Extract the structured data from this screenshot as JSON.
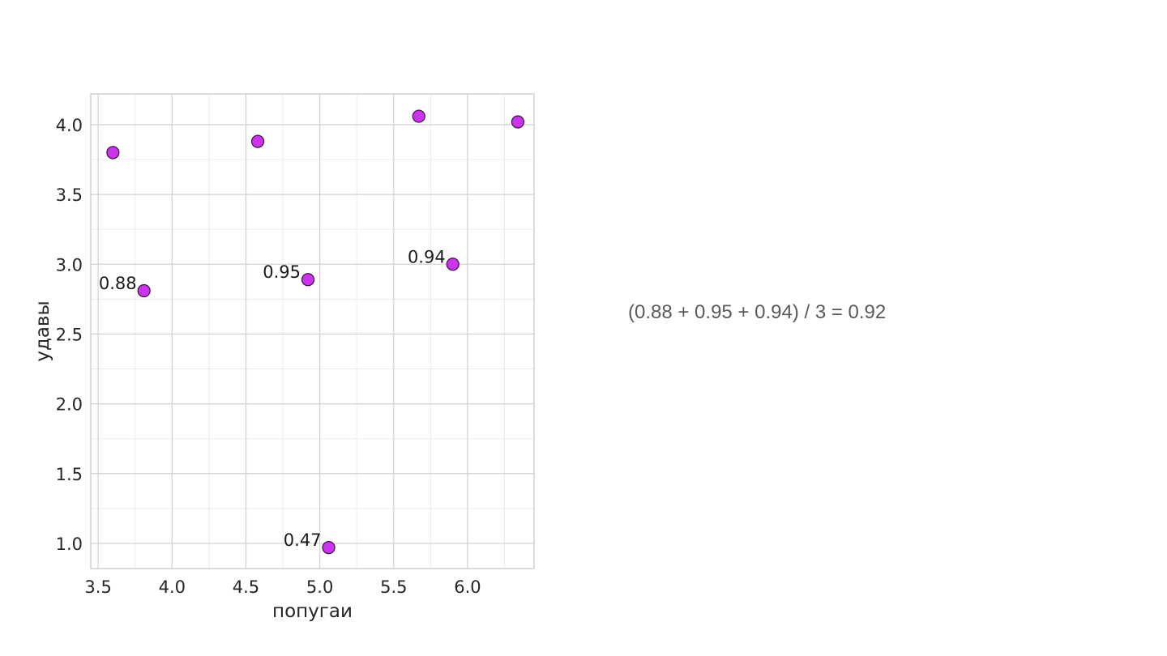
{
  "chart_data": {
    "type": "scatter",
    "xlabel": "попугаи",
    "ylabel": "удавы",
    "xlim": [
      3.45,
      6.45
    ],
    "ylim": [
      0.82,
      4.22
    ],
    "xticks": [
      3.5,
      4.0,
      4.5,
      5.0,
      5.5,
      6.0
    ],
    "yticks": [
      1.0,
      1.5,
      2.0,
      2.5,
      3.0,
      3.5,
      4.0
    ],
    "grid": true,
    "marker_color": "#cc33ee",
    "marker_edge_color": "#3a1040",
    "points": [
      {
        "x": 3.6,
        "y": 3.8,
        "label": ""
      },
      {
        "x": 3.81,
        "y": 2.81,
        "label": "0.88"
      },
      {
        "x": 4.58,
        "y": 3.88,
        "label": ""
      },
      {
        "x": 4.92,
        "y": 2.89,
        "label": "0.95"
      },
      {
        "x": 5.06,
        "y": 0.97,
        "label": "0.47"
      },
      {
        "x": 5.67,
        "y": 4.06,
        "label": ""
      },
      {
        "x": 5.9,
        "y": 3.0,
        "label": "0.94"
      },
      {
        "x": 6.34,
        "y": 4.02,
        "label": ""
      }
    ]
  },
  "formula": "(0.88 + 0.95 + 0.94) / 3 = 0.92"
}
